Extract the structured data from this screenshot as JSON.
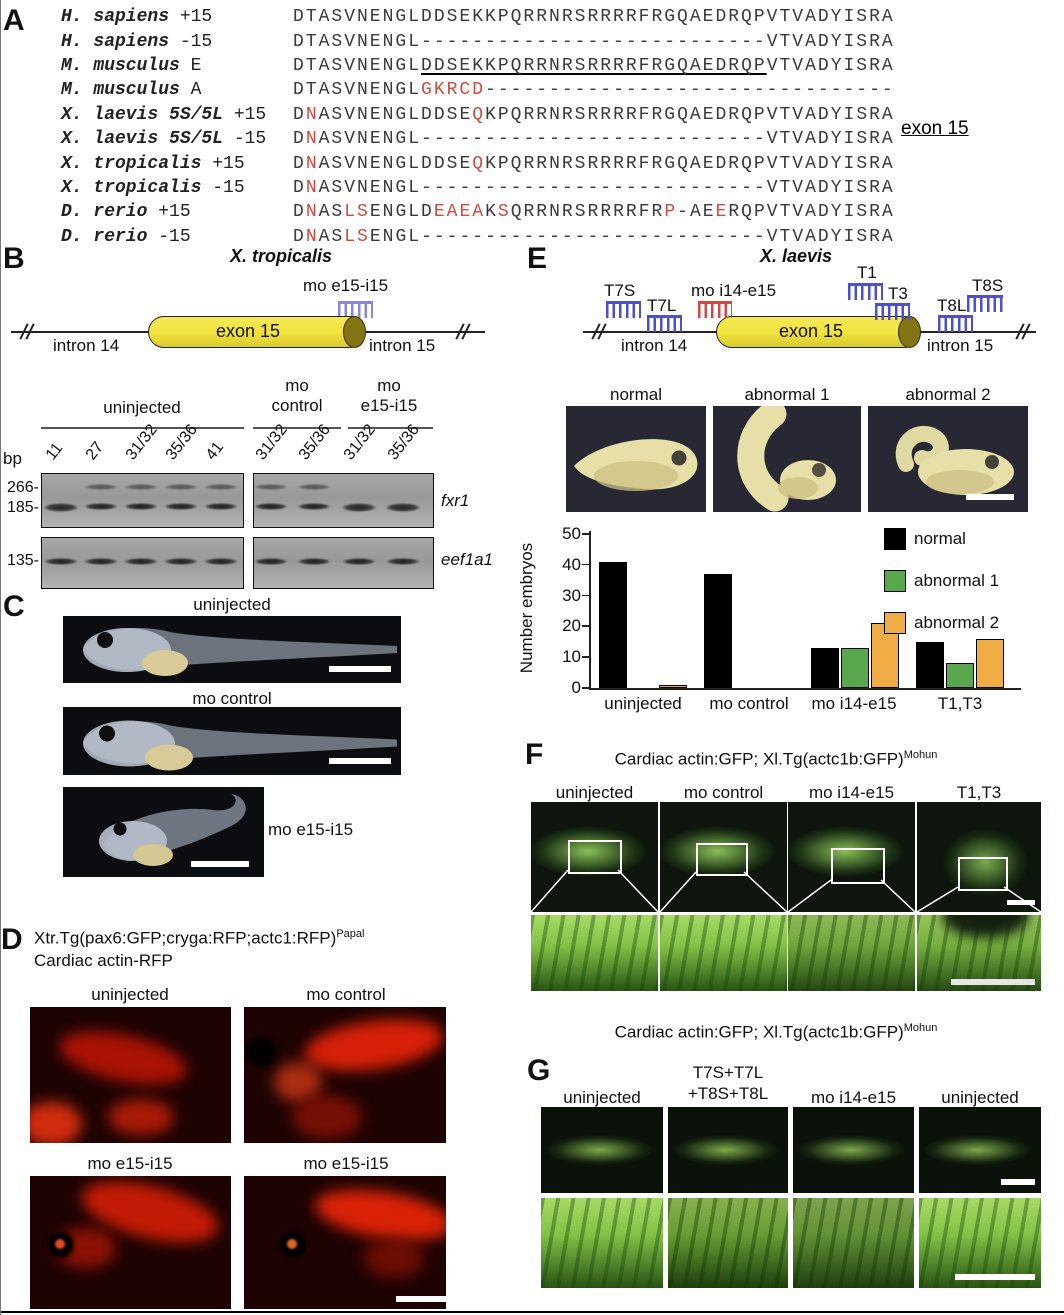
{
  "panelA": {
    "label": "A",
    "exon_tag": "exon 15",
    "rows": [
      {
        "species": "H. sapiens",
        "variant": "+15",
        "seq": [
          {
            "t": "DTASVNENGLDDSEKKPQRRNRSRRRRFRGQAEDRQPVTVADYISRA"
          }
        ]
      },
      {
        "species": "H. sapiens",
        "variant": "-15",
        "seq": [
          {
            "t": "DTASVNENGL"
          },
          {
            "t": "---------------------------"
          },
          {
            "t": "VTVADYISRA"
          }
        ]
      },
      {
        "species": "M. musculus",
        "variant": "E",
        "seq": [
          {
            "t": "DTASVNENGL"
          },
          {
            "t": "DDSEKKPQRRNRSRRRRFRGQAEDRQP",
            "u": 1
          },
          {
            "t": "VTVADYISRA"
          }
        ]
      },
      {
        "species": "M. musculus",
        "variant": "A",
        "seq": [
          {
            "t": "DTASVNENGL"
          },
          {
            "t": "GKRCD",
            "r": 1
          },
          {
            "t": "--------------------------------"
          }
        ]
      },
      {
        "species": "X. laevis 5S/5L",
        "variant": "+15",
        "seq": [
          {
            "t": "D"
          },
          {
            "t": "N",
            "r": 1
          },
          {
            "t": "ASVNENGLDDSE"
          },
          {
            "t": "Q",
            "r": 1
          },
          {
            "t": "KPQRRNRSRRRRFRGQAEDRQPVTVADYISRA"
          }
        ]
      },
      {
        "species": "X. laevis 5S/5L",
        "variant": "-15",
        "seq": [
          {
            "t": "D"
          },
          {
            "t": "N",
            "r": 1
          },
          {
            "t": "ASVNENGL"
          },
          {
            "t": "---------------------------"
          },
          {
            "t": "VTVADYISRA"
          }
        ]
      },
      {
        "species": "X. tropicalis",
        "variant": "+15",
        "seq": [
          {
            "t": "D"
          },
          {
            "t": "N",
            "r": 1
          },
          {
            "t": "ASVNENGLDDSE"
          },
          {
            "t": "Q",
            "r": 1
          },
          {
            "t": "KPQRRNRSRRRRFRGQAEDRQPVTVADYISRA"
          }
        ]
      },
      {
        "species": "X. tropicalis",
        "variant": "-15",
        "seq": [
          {
            "t": "D"
          },
          {
            "t": "N",
            "r": 1
          },
          {
            "t": "ASVNENGL"
          },
          {
            "t": "---------------------------"
          },
          {
            "t": "VTVADYISRA"
          }
        ]
      },
      {
        "species": "D. rerio",
        "variant": "+15",
        "seq": [
          {
            "t": "D"
          },
          {
            "t": "N",
            "r": 1
          },
          {
            "t": "AS"
          },
          {
            "t": "LS",
            "r": 1
          },
          {
            "t": "ENGLD"
          },
          {
            "t": "EAEA",
            "r": 1
          },
          {
            "t": "K"
          },
          {
            "t": "S",
            "r": 1
          },
          {
            "t": "QRRNRSRRRRFR"
          },
          {
            "t": "P",
            "r": 1
          },
          {
            "t": "-AE"
          },
          {
            "t": "E",
            "r": 1
          },
          {
            "t": "RQPVTVADYISRA"
          }
        ]
      },
      {
        "species": "D. rerio",
        "variant": "-15",
        "seq": [
          {
            "t": "D"
          },
          {
            "t": "N",
            "r": 1
          },
          {
            "t": "AS"
          },
          {
            "t": "LS",
            "r": 1
          },
          {
            "t": "ENGL"
          },
          {
            "t": "---------------------------"
          },
          {
            "t": "VTVADYISRA"
          }
        ]
      }
    ]
  },
  "panelB": {
    "label": "B",
    "title": "X. tropicalis",
    "diagram": {
      "intron_left": "intron 14",
      "exon": "exon 15",
      "intron_right": "intron 15",
      "mo_label": "mo e15-i15",
      "mo_color": "#8d86d6"
    },
    "gel": {
      "bp": "bp",
      "groups": [
        {
          "label": "uninjected",
          "label_lines": [
            "uninjected"
          ],
          "lanes": [
            {
              "stage": "11",
              "bands": [
                "185s"
              ]
            },
            {
              "stage": "27",
              "bands": [
                "266",
                "185"
              ]
            },
            {
              "stage": "31/32",
              "bands": [
                "266",
                "185"
              ]
            },
            {
              "stage": "35/36",
              "bands": [
                "266",
                "185"
              ]
            },
            {
              "stage": "41",
              "bands": [
                "266",
                "185"
              ]
            }
          ]
        },
        {
          "label": "mo control",
          "label_lines": [
            "mo",
            "control"
          ],
          "lanes": [
            {
              "stage": "31/32",
              "bands": [
                "266",
                "185"
              ]
            },
            {
              "stage": "35/36",
              "bands": [
                "266",
                "185"
              ]
            }
          ]
        },
        {
          "label": "mo e15-i15",
          "label_lines": [
            "mo",
            "e15-i15"
          ],
          "lanes": [
            {
              "stage": "31/32",
              "bands": [
                "185s"
              ]
            },
            {
              "stage": "35/36",
              "bands": [
                "185s"
              ]
            }
          ]
        }
      ],
      "markers": {
        "m266": "266-",
        "m185": "185-",
        "m135": "135-"
      },
      "gene_top": "fxr1",
      "gene_bottom": "eef1a1"
    }
  },
  "panelC": {
    "label": "C",
    "captions": [
      "uninjected",
      "mo control",
      "mo e15-i15"
    ]
  },
  "panelD": {
    "label": "D",
    "title": "Xtr.Tg(pax6:GFP;cryga:RFP;actc1:RFP)",
    "title_sup": "Papal",
    "subtitle": "Cardiac actin-RFP",
    "captions": [
      "uninjected",
      "mo control",
      "mo e15-i15",
      "mo e15-i15"
    ]
  },
  "panelE": {
    "label": "E",
    "title": "X. laevis",
    "diagram": {
      "intron_left": "intron 14",
      "exon": "exon 15",
      "intron_right": "intron 15",
      "probes": [
        {
          "id": "T7S",
          "label": "T7S",
          "color": "#4d4fd0"
        },
        {
          "id": "T7L",
          "label": "T7L",
          "color": "#4d4fd0"
        },
        {
          "id": "mo",
          "label": "mo i14-e15",
          "color": "#cf4a42"
        },
        {
          "id": "T1",
          "label": "T1",
          "color": "#4d4fd0"
        },
        {
          "id": "T3",
          "label": "T3",
          "color": "#4d4fd0"
        },
        {
          "id": "T8L",
          "label": "T8L",
          "color": "#4d4fd0"
        },
        {
          "id": "T8S",
          "label": "T8S",
          "color": "#4d4fd0"
        }
      ]
    },
    "phenotypes": [
      "normal",
      "abnormal 1",
      "abnormal 2"
    ],
    "chart_data": {
      "type": "bar",
      "categories": [
        "uninjected",
        "mo control",
        "mo i14-e15",
        "T1,T3"
      ],
      "series": [
        {
          "name": "normal",
          "color": "#000000",
          "values": [
            41,
            37,
            13,
            15
          ]
        },
        {
          "name": "abnormal 1",
          "color": "#5aa84e",
          "values": [
            0,
            0,
            13,
            8
          ]
        },
        {
          "name": "abnormal 2",
          "color": "#f0ac45",
          "values": [
            1,
            0,
            21,
            16
          ]
        }
      ],
      "ylabel": "Number embryos",
      "ylim": [
        0,
        50
      ],
      "yticks": [
        0,
        10,
        20,
        30,
        40,
        50
      ],
      "legend_position": "upper right",
      "grid": false
    }
  },
  "panelF": {
    "label": "F",
    "title": "Cardiac actin:GFP; Xl.Tg(actc1b:GFP)",
    "title_sup": "Mohun",
    "columns": [
      "uninjected",
      "mo control",
      "mo i14-e15",
      "T1,T3"
    ]
  },
  "panelG": {
    "label": "G",
    "title": "Cardiac actin:GFP; Xl.Tg(actc1b:GFP)",
    "title_sup": "Mohun",
    "columns": [
      [
        "uninjected"
      ],
      [
        "T7S+T7L",
        "+T8S+T8L"
      ],
      [
        "mo i14-e15"
      ],
      [
        "uninjected"
      ]
    ]
  }
}
